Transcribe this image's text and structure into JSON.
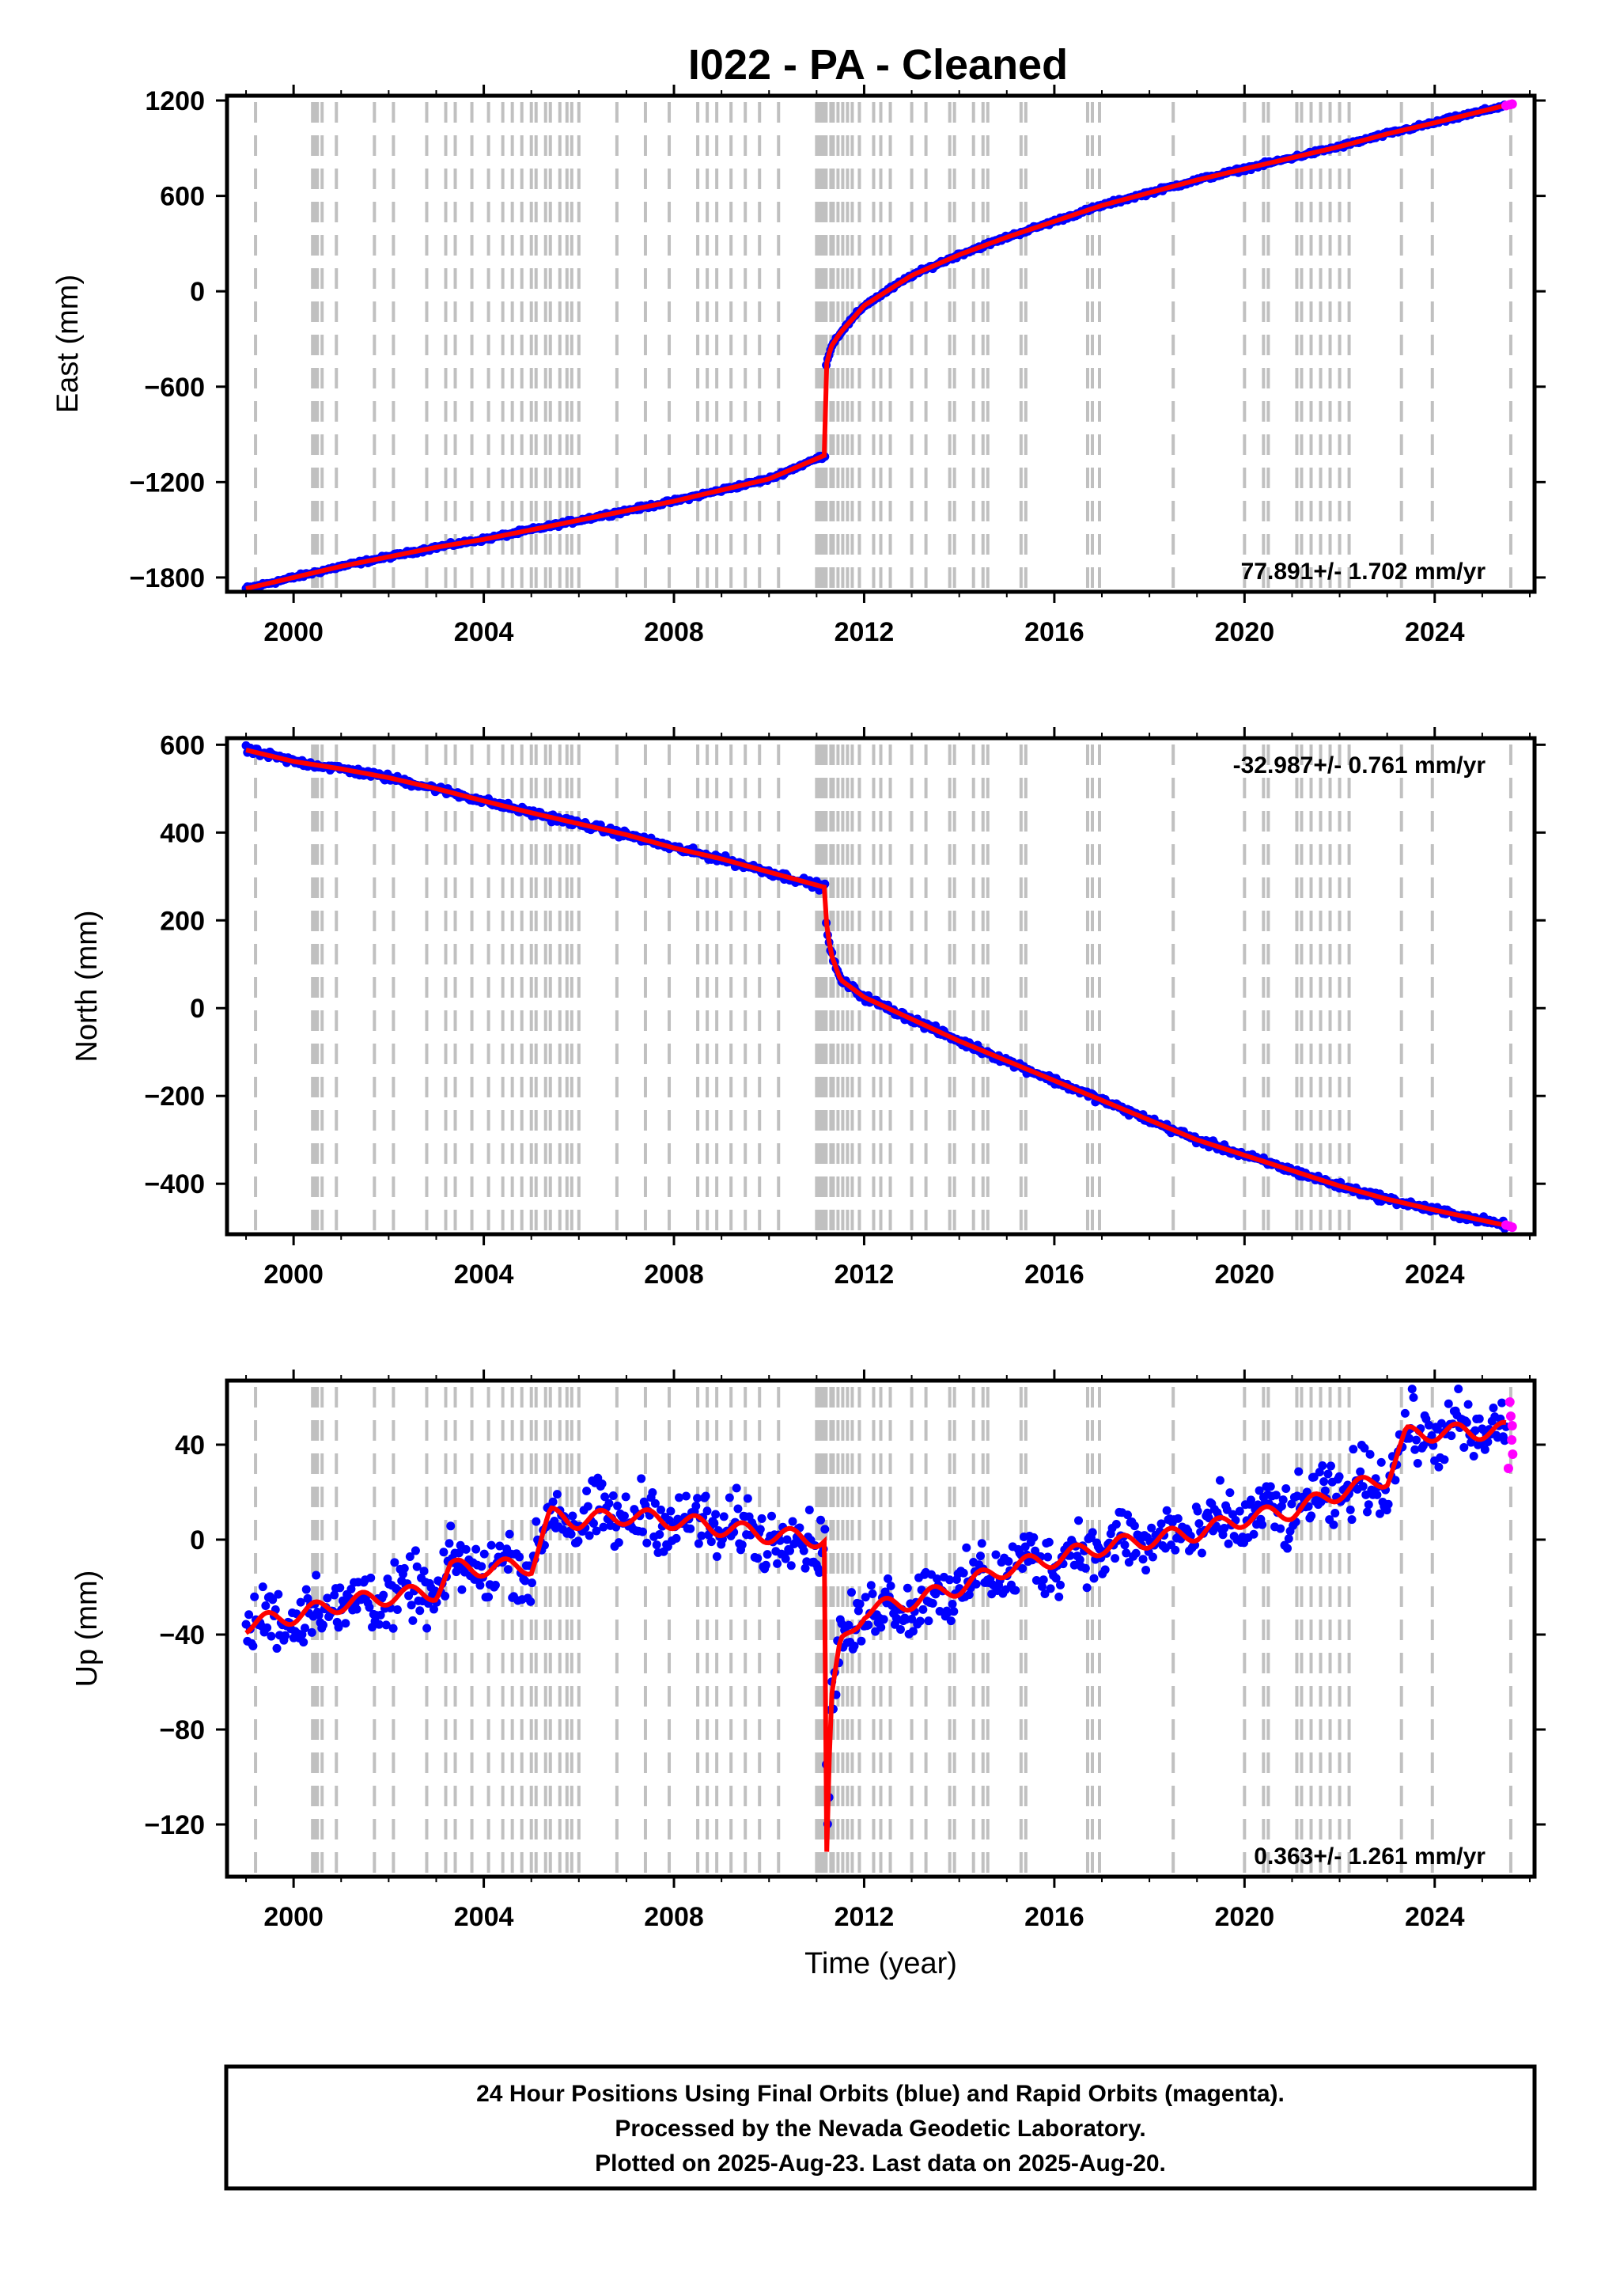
{
  "title": "I022  - PA - Cleaned",
  "footer": {
    "lines": [
      "24 Hour Positions Using Final Orbits (blue) and Rapid Orbits (magenta).",
      "Processed by the Nevada Geodetic Laboratory.",
      "Plotted on 2025-Aug-23. Last data on 2025-Aug-20."
    ]
  },
  "colors": {
    "final_orbits": "#0000ff",
    "rapid_orbits": "#ff00ff",
    "model": "#ff0000",
    "event_lines": "#c0c0c0",
    "frame": "#000000"
  },
  "chart_data": [
    {
      "type": "scatter",
      "name": "east",
      "ylabel": "East (mm)",
      "xlabel": "",
      "xlim": [
        1998.6,
        2026.1
      ],
      "ylim": [
        -1890,
        1230
      ],
      "yticks": [
        -1800,
        -1200,
        -600,
        0,
        600,
        1200
      ],
      "xticks": [
        2000,
        2004,
        2008,
        2012,
        2016,
        2020,
        2024
      ],
      "rate_label": "77.891+/- 1.702 mm/yr",
      "rate_position": "bottom-right",
      "grid": false,
      "series": [
        {
          "name": "Final Orbits",
          "color": "#0000ff",
          "x": [
            1999.0,
            2000.0,
            2001.0,
            2002.0,
            2003.0,
            2004.0,
            2005.0,
            2006.0,
            2007.0,
            2008.0,
            2009.0,
            2010.0,
            2011.18,
            2011.2,
            2011.3,
            2011.5,
            2012.0,
            2013.0,
            2014.0,
            2015.0,
            2016.0,
            2017.0,
            2018.0,
            2019.0,
            2020.0,
            2021.0,
            2022.0,
            2023.0,
            2024.0,
            2025.5
          ],
          "y": [
            -1870,
            -1800,
            -1730,
            -1670,
            -1610,
            -1560,
            -1500,
            -1440,
            -1380,
            -1320,
            -1250,
            -1180,
            -1030,
            -470,
            -350,
            -260,
            -90,
            100,
            230,
            340,
            440,
            540,
            620,
            700,
            770,
            840,
            910,
            990,
            1060,
            1170
          ]
        },
        {
          "name": "Rapid Orbits",
          "color": "#ff00ff",
          "x": [
            2025.5,
            2025.58,
            2025.63
          ],
          "y": [
            1168,
            1174,
            1178
          ]
        }
      ],
      "events": [
        1999.2,
        2000.4,
        2000.45,
        2000.5,
        2000.6,
        2000.9,
        2001.7,
        2002.1,
        2002.8,
        2003.2,
        2003.4,
        2003.75,
        2004.1,
        2004.4,
        2004.6,
        2004.8,
        2005.0,
        2005.1,
        2005.3,
        2005.4,
        2005.6,
        2005.75,
        2005.85,
        2006.0,
        2006.8,
        2007.4,
        2007.9,
        2008.5,
        2008.7,
        2008.9,
        2009.2,
        2009.5,
        2009.8,
        2010.2,
        2011.0,
        2011.05,
        2011.1,
        2011.15,
        2011.2,
        2011.3,
        2011.35,
        2011.45,
        2011.55,
        2011.65,
        2011.75,
        2011.9,
        2012.2,
        2012.35,
        2012.55,
        2013.0,
        2013.3,
        2013.8,
        2013.9,
        2014.3,
        2014.5,
        2014.6,
        2015.3,
        2015.4,
        2016.7,
        2016.8,
        2016.95,
        2018.5,
        2020.0,
        2020.4,
        2020.5,
        2021.1,
        2021.2,
        2021.4,
        2021.6,
        2021.8,
        2022.0,
        2022.2,
        2023.3,
        2023.95,
        2025.6
      ]
    },
    {
      "type": "scatter",
      "name": "north",
      "ylabel": "North (mm)",
      "xlabel": "",
      "xlim": [
        1998.6,
        2026.1
      ],
      "ylim": [
        -515,
        615
      ],
      "yticks": [
        -400,
        -200,
        0,
        200,
        400,
        600
      ],
      "xticks": [
        2000,
        2004,
        2008,
        2012,
        2016,
        2020,
        2024
      ],
      "rate_label": "-32.987+/- 0.761 mm/yr",
      "rate_position": "top-right",
      "grid": false,
      "series": [
        {
          "name": "Final Orbits",
          "color": "#0000ff",
          "x": [
            1999.0,
            2000.0,
            2001.0,
            2002.0,
            2003.0,
            2004.0,
            2005.0,
            2006.0,
            2007.0,
            2008.0,
            2009.0,
            2010.0,
            2011.18,
            2011.2,
            2011.3,
            2011.5,
            2012.0,
            2013.0,
            2014.0,
            2015.0,
            2016.0,
            2017.0,
            2018.0,
            2019.0,
            2020.0,
            2021.0,
            2022.0,
            2023.0,
            2024.0,
            2025.5
          ],
          "y": [
            588,
            562,
            545,
            525,
            500,
            472,
            445,
            420,
            395,
            365,
            340,
            310,
            275,
            200,
            125,
            65,
            25,
            -25,
            -75,
            -120,
            -165,
            -210,
            -255,
            -300,
            -335,
            -370,
            -405,
            -435,
            -460,
            -495
          ]
        },
        {
          "name": "Rapid Orbits",
          "color": "#ff00ff",
          "x": [
            2025.5,
            2025.58,
            2025.63
          ],
          "y": [
            -494,
            -497,
            -499
          ]
        }
      ]
    },
    {
      "type": "scatter",
      "name": "up",
      "ylabel": "Up (mm)",
      "xlabel": "Time (year)",
      "xlim": [
        1998.6,
        2026.1
      ],
      "ylim": [
        -142,
        67
      ],
      "yticks": [
        -120,
        -80,
        -40,
        0,
        40
      ],
      "xticks": [
        2000,
        2004,
        2008,
        2012,
        2016,
        2020,
        2024
      ],
      "rate_label": "0.363+/- 1.261 mm/yr",
      "rate_position": "bottom-right",
      "grid": false,
      "series": [
        {
          "name": "Final Orbits",
          "color": "#0000ff",
          "x": [
            1999.0,
            2000.0,
            2001.0,
            2002.0,
            2003.0,
            2003.3,
            2004.0,
            2005.0,
            2005.4,
            2006.0,
            2007.0,
            2008.0,
            2009.0,
            2010.0,
            2011.18,
            2011.21,
            2011.3,
            2011.5,
            2012.0,
            2013.0,
            2014.0,
            2015.0,
            2016.0,
            2017.0,
            2018.0,
            2019.0,
            2020.0,
            2021.0,
            2022.0,
            2023.0,
            2023.4,
            2024.0,
            2025.5
          ],
          "y": [
            -36,
            -32,
            -27,
            -24,
            -22,
            -12,
            -12,
            -11,
            10,
            8,
            10,
            8,
            5,
            2,
            0,
            -135,
            -70,
            -45,
            -30,
            -26,
            -20,
            -12,
            -8,
            -3,
            0,
            3,
            9,
            12,
            20,
            26,
            44,
            45,
            46
          ]
        },
        {
          "name": "Rapid Orbits",
          "color": "#ff00ff",
          "x": [
            2025.55,
            2025.58,
            2025.6,
            2025.62,
            2025.63,
            2025.64
          ],
          "y": [
            30,
            58,
            52,
            42,
            48,
            36
          ]
        }
      ]
    }
  ]
}
